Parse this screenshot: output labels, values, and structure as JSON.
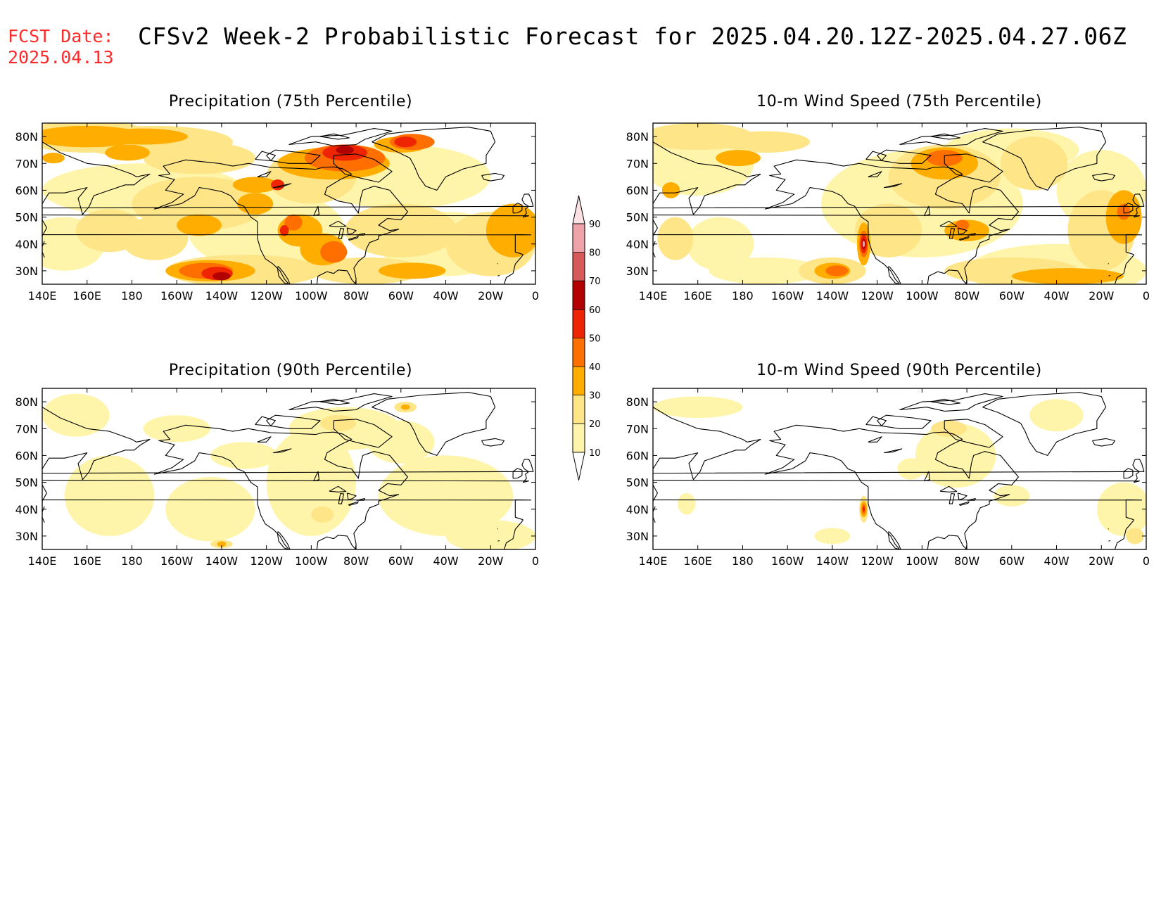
{
  "header": {
    "fcst_label": "FCST Date:",
    "fcst_date": "2025.04.13",
    "title": "CFSv2 Week-2 Probabilistic Forecast for 2025.04.20.12Z-2025.04.27.06Z"
  },
  "lon_labels": [
    "140E",
    "160E",
    "180",
    "160W",
    "140W",
    "120W",
    "100W",
    "80W",
    "60W",
    "40W",
    "20W",
    "0"
  ],
  "lat_labels": [
    "80N",
    "70N",
    "60N",
    "50N",
    "40N",
    "30N"
  ],
  "panels": [
    {
      "id": "precip75",
      "title": "Precipitation (75th Percentile)"
    },
    {
      "id": "wind75",
      "title": "10-m Wind Speed (75th Percentile)"
    },
    {
      "id": "precip90",
      "title": "Precipitation (90th Percentile)"
    },
    {
      "id": "wind90",
      "title": "10-m Wind Speed (90th Percentile)"
    }
  ],
  "colorbar": {
    "labels": [
      "10",
      "20",
      "30",
      "40",
      "50",
      "60",
      "70",
      "80",
      "90"
    ],
    "colors": [
      "#fff5aa",
      "#fde588",
      "#ffae00",
      "#ff6f00",
      "#ee2500",
      "#b30000",
      "#d65a5a",
      "#efa3a8",
      "#fde0e4"
    ],
    "low_color": "#ffffff"
  },
  "colors": {
    "title": "#000000",
    "fcst_date": "#ff2a2a",
    "coast": "#000000"
  }
}
